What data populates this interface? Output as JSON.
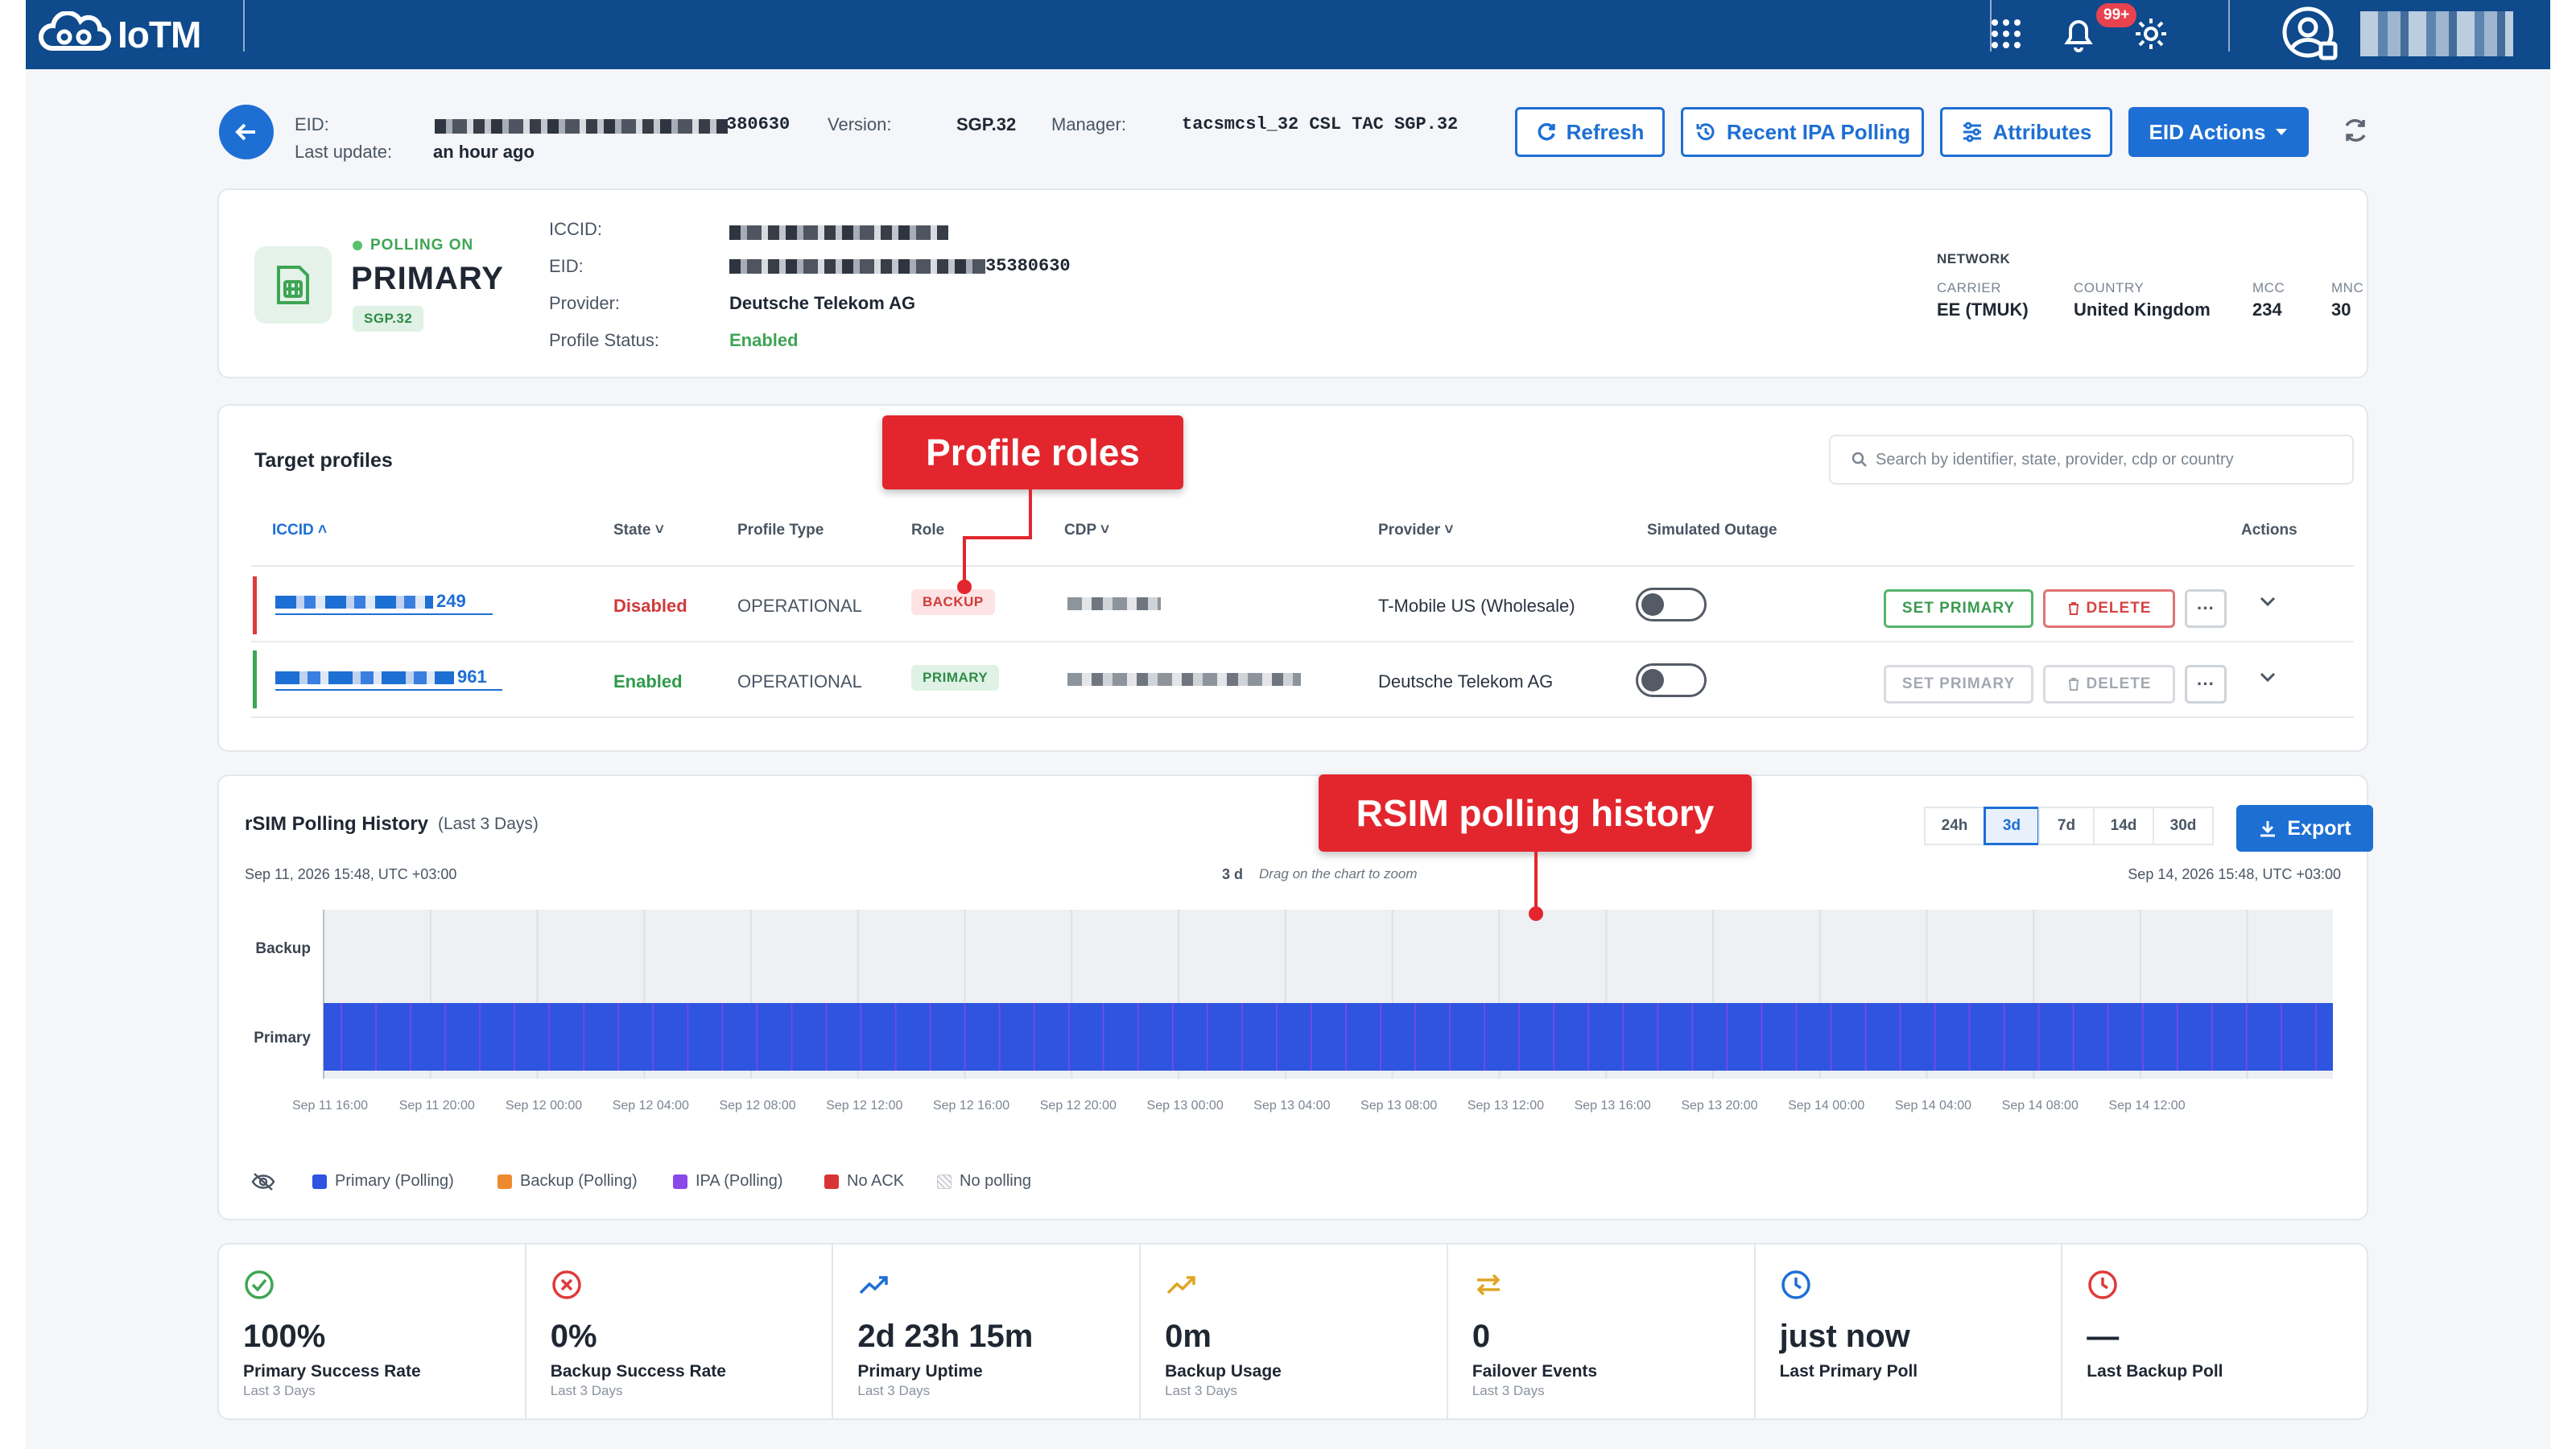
{
  "app": {
    "logo_text": "IoTM",
    "notification_count": "99+"
  },
  "eid_header": {
    "eid_label": "EID:",
    "eid_suffix": "380630",
    "last_update_label": "Last update:",
    "last_update_value": "an hour ago",
    "version_label": "Version:",
    "version_value": "SGP.32",
    "manager_label": "Manager:",
    "manager_value": "tacsmcsl_32 CSL TAC SGP.32"
  },
  "toolbar": {
    "refresh": "Refresh",
    "recent_ipa": "Recent IPA Polling",
    "attributes": "Attributes",
    "eid_actions": "EID Actions"
  },
  "profile_card": {
    "polling_status": "POLLING ON",
    "role": "PRIMARY",
    "standard": "SGP.32",
    "iccid_label": "ICCID:",
    "eid_label": "EID:",
    "eid_suffix": "35380630",
    "provider_label": "Provider:",
    "provider_value": "Deutsche Telekom AG",
    "status_label": "Profile Status:",
    "status_value": "Enabled",
    "network": {
      "title": "NETWORK",
      "carrier_label": "CARRIER",
      "carrier_value": "EE (TMUK)",
      "country_label": "COUNTRY",
      "country_value": "United Kingdom",
      "mcc_label": "MCC",
      "mcc_value": "234",
      "mnc_label": "MNC",
      "mnc_value": "30"
    }
  },
  "target_profiles": {
    "title": "Target profiles",
    "search_placeholder": "Search by identifier, state, provider, cdp or country",
    "columns": {
      "iccid": "ICCID",
      "state": "State",
      "profile_type": "Profile Type",
      "role": "Role",
      "cdp": "CDP",
      "provider": "Provider",
      "simulated_outage": "Simulated Outage",
      "actions": "Actions"
    },
    "rows": [
      {
        "iccid_suffix": "249",
        "state": "Disabled",
        "profile_type": "OPERATIONAL",
        "role": "BACKUP",
        "provider": "T-Mobile US (Wholesale)",
        "set_primary": "SET PRIMARY",
        "delete": "DELETE",
        "more": "···"
      },
      {
        "iccid_suffix": "961",
        "state": "Enabled",
        "profile_type": "OPERATIONAL",
        "role": "PRIMARY",
        "provider": "Deutsche Telekom AG",
        "set_primary": "SET PRIMARY",
        "delete": "DELETE",
        "more": "···"
      }
    ]
  },
  "callouts": {
    "profile_roles": "Profile roles",
    "polling_history": "RSIM polling history"
  },
  "polling_history": {
    "title": "rSIM Polling History",
    "subtitle": "(Last 3 Days)",
    "start": "Sep 11, 2026 15:48, UTC +03:00",
    "end": "Sep 14, 2026 15:48, UTC +03:00",
    "span": "3 d",
    "hint": "Drag on the chart to zoom",
    "ranges": [
      "24h",
      "3d",
      "7d",
      "14d",
      "30d"
    ],
    "active_range": "3d",
    "export": "Export",
    "legend": [
      "Primary (Polling)",
      "Backup (Polling)",
      "IPA (Polling)",
      "No ACK",
      "No polling"
    ],
    "colors": {
      "primary": "#2e54e0",
      "backup": "#ee8a2d",
      "ipa": "#8a49e8",
      "no_ack": "#d93434",
      "accent": "#1d6fd4"
    }
  },
  "chart_data": {
    "type": "timeline",
    "rows": [
      "Backup",
      "Primary"
    ],
    "x_tick_labels": [
      "Sep 11 16:00",
      "Sep 11 20:00",
      "Sep 12 00:00",
      "Sep 12 04:00",
      "Sep 12 08:00",
      "Sep 12 12:00",
      "Sep 12 16:00",
      "Sep 12 20:00",
      "Sep 13 00:00",
      "Sep 13 04:00",
      "Sep 13 08:00",
      "Sep 13 12:00",
      "Sep 13 16:00",
      "Sep 13 20:00",
      "Sep 14 00:00",
      "Sep 14 04:00",
      "Sep 14 08:00",
      "Sep 14 12:00"
    ],
    "series": [
      {
        "name": "Primary (Polling)",
        "row": "Primary",
        "coverage": "full range"
      },
      {
        "name": "Backup (Polling)",
        "row": "Backup",
        "coverage": "none"
      }
    ]
  },
  "stats": [
    {
      "value": "100%",
      "label": "Primary Success Rate",
      "sub": "Last 3 Days",
      "icon": "check-circle-icon"
    },
    {
      "value": "0%",
      "label": "Backup Success Rate",
      "sub": "Last 3 Days",
      "icon": "x-circle-icon"
    },
    {
      "value": "2d 23h 15m",
      "label": "Primary Uptime",
      "sub": "Last 3 Days",
      "icon": "trend-up-icon"
    },
    {
      "value": "0m",
      "label": "Backup Usage",
      "sub": "Last 3 Days",
      "icon": "trend-up-icon"
    },
    {
      "value": "0",
      "label": "Failover Events",
      "sub": "Last 3 Days",
      "icon": "swap-arrows-icon"
    },
    {
      "value": "just now",
      "label": "Last Primary Poll",
      "sub": "",
      "icon": "clock-icon"
    },
    {
      "value": "—",
      "label": "Last Backup Poll",
      "sub": "",
      "icon": "clock-icon"
    }
  ]
}
